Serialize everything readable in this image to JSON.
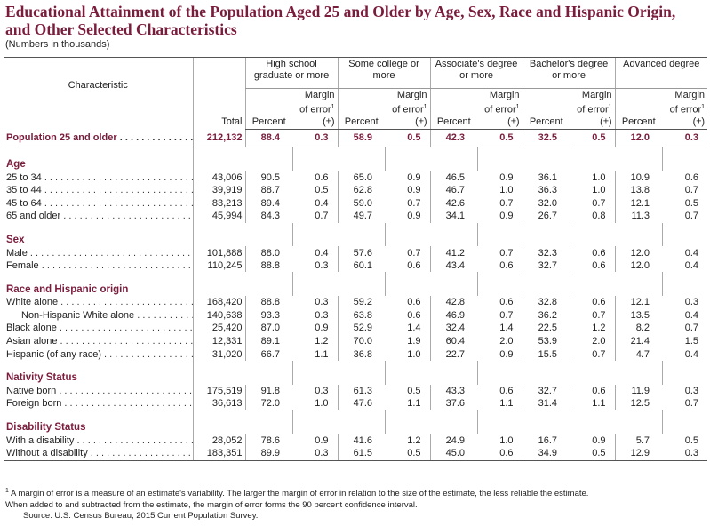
{
  "title": "Educational Attainment of the Population Aged 25 and Older by Age, Sex, Race and Hispanic Origin, and Other Selected Characteristics",
  "subtitle": "(Numbers in thousands)",
  "table": {
    "characteristic_header": "Characteristic",
    "total_header": "Total",
    "groups": [
      "High school graduate or more",
      "Some college or more",
      "Associate's degree or more",
      "Bachelor's degree or more",
      "Advanced degree"
    ],
    "percent_header": "Percent",
    "moe_header": "Margin of error",
    "moe_unit": "(±)",
    "total_row": {
      "label": "Population 25 and older",
      "cells": [
        "212,132",
        "88.4",
        "0.3",
        "58.9",
        "0.5",
        "42.3",
        "0.5",
        "32.5",
        "0.5",
        "12.0",
        "0.3"
      ]
    },
    "sections": [
      {
        "heading": "Age",
        "rows": [
          {
            "label": "25 to 34",
            "cells": [
              "43,006",
              "90.5",
              "0.6",
              "65.0",
              "0.9",
              "46.5",
              "0.9",
              "36.1",
              "1.0",
              "10.9",
              "0.6"
            ]
          },
          {
            "label": "35 to 44",
            "cells": [
              "39,919",
              "88.7",
              "0.5",
              "62.8",
              "0.9",
              "46.7",
              "1.0",
              "36.3",
              "1.0",
              "13.8",
              "0.7"
            ]
          },
          {
            "label": "45 to 64",
            "cells": [
              "83,213",
              "89.4",
              "0.4",
              "59.0",
              "0.7",
              "42.6",
              "0.7",
              "32.0",
              "0.7",
              "12.1",
              "0.5"
            ]
          },
          {
            "label": "65 and older",
            "cells": [
              "45,994",
              "84.3",
              "0.7",
              "49.7",
              "0.9",
              "34.1",
              "0.9",
              "26.7",
              "0.8",
              "11.3",
              "0.7"
            ]
          }
        ]
      },
      {
        "heading": "Sex",
        "rows": [
          {
            "label": "Male",
            "cells": [
              "101,888",
              "88.0",
              "0.4",
              "57.6",
              "0.7",
              "41.2",
              "0.7",
              "32.3",
              "0.6",
              "12.0",
              "0.4"
            ]
          },
          {
            "label": "Female",
            "cells": [
              "110,245",
              "88.8",
              "0.3",
              "60.1",
              "0.6",
              "43.4",
              "0.6",
              "32.7",
              "0.6",
              "12.0",
              "0.4"
            ]
          }
        ]
      },
      {
        "heading": "Race and Hispanic origin",
        "rows": [
          {
            "label": "White alone",
            "cells": [
              "168,420",
              "88.8",
              "0.3",
              "59.2",
              "0.6",
              "42.8",
              "0.6",
              "32.8",
              "0.6",
              "12.1",
              "0.3"
            ],
            "subrows": [
              {
                "label": "Non-Hispanic White alone",
                "cells": [
                  "140,638",
                  "93.3",
                  "0.3",
                  "63.8",
                  "0.6",
                  "46.9",
                  "0.7",
                  "36.2",
                  "0.7",
                  "13.5",
                  "0.4"
                ]
              }
            ]
          },
          {
            "label": "Black alone",
            "cells": [
              "25,420",
              "87.0",
              "0.9",
              "52.9",
              "1.4",
              "32.4",
              "1.4",
              "22.5",
              "1.2",
              "8.2",
              "0.7"
            ]
          },
          {
            "label": "Asian alone",
            "cells": [
              "12,331",
              "89.1",
              "1.2",
              "70.0",
              "1.9",
              "60.4",
              "2.0",
              "53.9",
              "2.0",
              "21.4",
              "1.5"
            ]
          },
          {
            "label": "Hispanic (of any race)",
            "cells": [
              "31,020",
              "66.7",
              "1.1",
              "36.8",
              "1.0",
              "22.7",
              "0.9",
              "15.5",
              "0.7",
              "4.7",
              "0.4"
            ]
          }
        ]
      },
      {
        "heading": "Nativity Status",
        "rows": [
          {
            "label": "Native born",
            "cells": [
              "175,519",
              "91.8",
              "0.3",
              "61.3",
              "0.5",
              "43.3",
              "0.6",
              "32.7",
              "0.6",
              "11.9",
              "0.3"
            ]
          },
          {
            "label": "Foreign born",
            "cells": [
              "36,613",
              "72.0",
              "1.0",
              "47.6",
              "1.1",
              "37.6",
              "1.1",
              "31.4",
              "1.1",
              "12.5",
              "0.7"
            ]
          }
        ]
      },
      {
        "heading": "Disability Status",
        "rows": [
          {
            "label": "With a disability",
            "cells": [
              "28,052",
              "78.6",
              "0.9",
              "41.6",
              "1.2",
              "24.9",
              "1.0",
              "16.7",
              "0.9",
              "5.7",
              "0.5"
            ]
          },
          {
            "label": "Without a disability",
            "cells": [
              "183,351",
              "89.9",
              "0.3",
              "61.5",
              "0.5",
              "45.0",
              "0.6",
              "34.9",
              "0.5",
              "12.9",
              "0.3"
            ]
          }
        ]
      }
    ]
  },
  "notes": {
    "marker": "1",
    "lines": [
      "A margin of error is a measure of an estimate's variability. The larger the margin of error in relation to the size of the estimate, the less reliable the estimate.",
      "When added to and subtracted from the estimate, the margin of error forms the 90 percent confidence interval."
    ],
    "source": "Source: U.S. Census Bureau, 2015 Current Population Survey."
  }
}
